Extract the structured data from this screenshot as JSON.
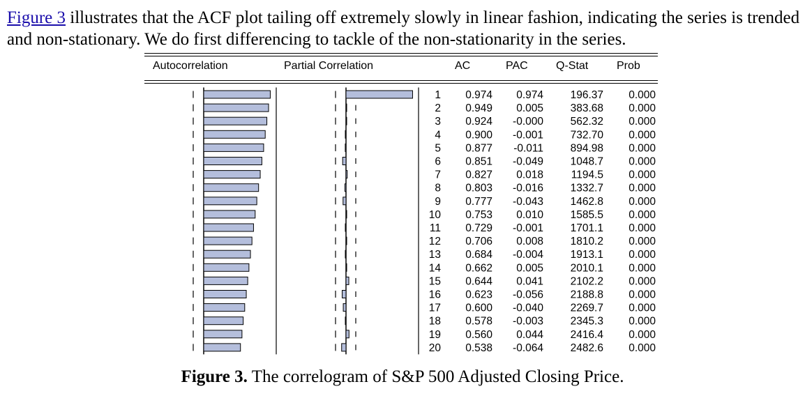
{
  "paragraph": {
    "link_text": "Figure 3",
    "text": " illustrates that the ACF plot tailing off extremely slowly in linear fashion, indicating the series is trended and non-stationary. We do first differencing to tackle of the non-stationarity in the series."
  },
  "table": {
    "headers": {
      "autocorrelation": "Autocorrelation",
      "partial": "Partial Correlation",
      "ac": "AC",
      "pac": "PAC",
      "qstat": "Q-Stat",
      "prob": "Prob"
    },
    "rows": [
      {
        "lag": "1",
        "ac": "0.974",
        "pac": "0.974",
        "q": "196.37",
        "prob": "0.000"
      },
      {
        "lag": "2",
        "ac": "0.949",
        "pac": "0.005",
        "q": "383.68",
        "prob": "0.000"
      },
      {
        "lag": "3",
        "ac": "0.924",
        "pac": "-0.000",
        "q": "562.32",
        "prob": "0.000"
      },
      {
        "lag": "4",
        "ac": "0.900",
        "pac": "-0.001",
        "q": "732.70",
        "prob": "0.000"
      },
      {
        "lag": "5",
        "ac": "0.877",
        "pac": "-0.011",
        "q": "894.98",
        "prob": "0.000"
      },
      {
        "lag": "6",
        "ac": "0.851",
        "pac": "-0.049",
        "q": "1048.7",
        "prob": "0.000"
      },
      {
        "lag": "7",
        "ac": "0.827",
        "pac": "0.018",
        "q": "1194.5",
        "prob": "0.000"
      },
      {
        "lag": "8",
        "ac": "0.803",
        "pac": "-0.016",
        "q": "1332.7",
        "prob": "0.000"
      },
      {
        "lag": "9",
        "ac": "0.777",
        "pac": "-0.043",
        "q": "1462.8",
        "prob": "0.000"
      },
      {
        "lag": "10",
        "ac": "0.753",
        "pac": "0.010",
        "q": "1585.5",
        "prob": "0.000"
      },
      {
        "lag": "11",
        "ac": "0.729",
        "pac": "-0.001",
        "q": "1701.1",
        "prob": "0.000"
      },
      {
        "lag": "12",
        "ac": "0.706",
        "pac": "0.008",
        "q": "1810.2",
        "prob": "0.000"
      },
      {
        "lag": "13",
        "ac": "0.684",
        "pac": "-0.004",
        "q": "1913.1",
        "prob": "0.000"
      },
      {
        "lag": "14",
        "ac": "0.662",
        "pac": "0.005",
        "q": "2010.1",
        "prob": "0.000"
      },
      {
        "lag": "15",
        "ac": "0.644",
        "pac": "0.041",
        "q": "2102.2",
        "prob": "0.000"
      },
      {
        "lag": "16",
        "ac": "0.623",
        "pac": "-0.056",
        "q": "2188.8",
        "prob": "0.000"
      },
      {
        "lag": "17",
        "ac": "0.600",
        "pac": "-0.040",
        "q": "2269.7",
        "prob": "0.000"
      },
      {
        "lag": "18",
        "ac": "0.578",
        "pac": "-0.003",
        "q": "2345.3",
        "prob": "0.000"
      },
      {
        "lag": "19",
        "ac": "0.560",
        "pac": "0.044",
        "q": "2416.4",
        "prob": "0.000"
      },
      {
        "lag": "20",
        "ac": "0.538",
        "pac": "-0.064",
        "q": "2482.6",
        "prob": "0.000"
      }
    ]
  },
  "caption": {
    "label": "Figure 3.",
    "text": " The correlogram of S&P 500 Adjusted Closing Price."
  },
  "colors": {
    "bar_fill": "#b4bedc",
    "bar_stroke": "#000000",
    "link": "#1a0dab"
  }
}
